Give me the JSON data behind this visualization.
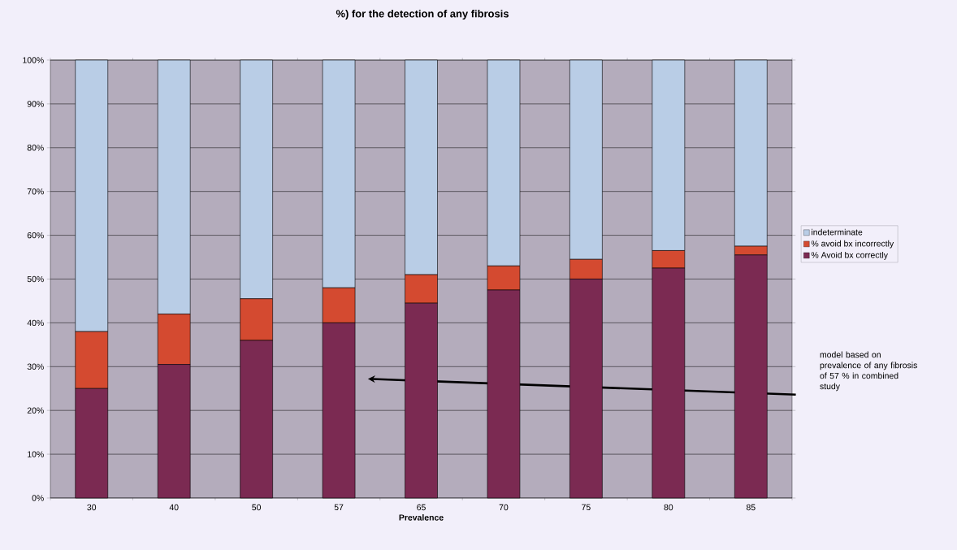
{
  "chart_data": {
    "type": "bar",
    "stacked": true,
    "title": "%) for the detection of any fibrosis",
    "xlabel": "Prevalence",
    "categories": [
      "30",
      "40",
      "50",
      "57",
      "65",
      "70",
      "75",
      "80",
      "85"
    ],
    "series": [
      {
        "name": "% Avoid bx correctly",
        "color": "#7b2a52",
        "values": [
          25,
          30.5,
          36,
          40,
          44.5,
          47.5,
          50,
          52.5,
          55.5
        ]
      },
      {
        "name": "% avoid bx incorrectly",
        "color": "#d44a30",
        "values": [
          13,
          11.5,
          9.5,
          8,
          6.5,
          5.5,
          4.5,
          4,
          2
        ]
      },
      {
        "name": "indeterminate",
        "color": "#b9cde6",
        "values": [
          62,
          58,
          54.5,
          52,
          49,
          47,
          45.5,
          43.5,
          42.5
        ]
      }
    ],
    "ylim": [
      0,
      100
    ],
    "yticks": [
      {
        "value": 0,
        "label": "0%"
      },
      {
        "value": 10,
        "label": "10%"
      },
      {
        "value": 20,
        "label": "20%"
      },
      {
        "value": 30,
        "label": "30%"
      },
      {
        "value": 40,
        "label": "40%"
      },
      {
        "value": 50,
        "label": "50%"
      },
      {
        "value": 60,
        "label": "60%"
      },
      {
        "value": 70,
        "label": "70%"
      },
      {
        "value": 80,
        "label": "80%"
      },
      {
        "value": 90,
        "label": "90%"
      },
      {
        "value": 100,
        "label": "100%"
      }
    ],
    "grid": "y",
    "legend": "right",
    "annotations": [
      "model based on prevalence of any fibrosis of 57 %  in combined study"
    ]
  }
}
